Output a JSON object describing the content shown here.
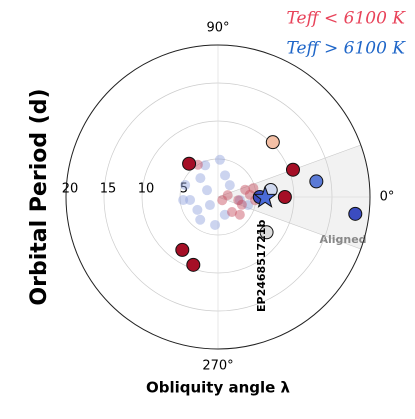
{
  "chart_data": {
    "type": "polar-scatter",
    "x_label": "Obliquity angle λ",
    "y_label": "Orbital Period (d)",
    "rlim": [
      0,
      20
    ],
    "rticks": [
      5,
      10,
      15,
      20
    ],
    "thetaticks": [
      {
        "value": 90,
        "label": "90°"
      },
      {
        "value": 0,
        "label": "0°"
      },
      {
        "value": 270,
        "label": "270°"
      }
    ],
    "grid": true,
    "legend": "upper right",
    "aligned_region": {
      "label": "Aligned",
      "theta": [
        -20,
        20
      ]
    },
    "series": [
      {
        "name": "Teff < 6100 K",
        "color": "#e8435a",
        "theta": [
          131,
          20,
          0,
          236,
          250,
          45
        ],
        "r": [
          5.8,
          10.5,
          8.8,
          8.4,
          9.5,
          10.2
        ],
        "colors": [
          "#a50f26",
          "#a50f26",
          "#a50f26",
          "#a50f26",
          "#a50f26",
          "#f3bfa5"
        ]
      },
      {
        "name": "Teff > 6100 K",
        "color": "#1f66c8",
        "theta": [
          9,
          353,
          7.5,
          324,
          0
        ],
        "r": [
          13.1,
          18.2,
          7.0,
          7.9,
          5.5
        ],
        "colors": [
          "#5b7ad6",
          "#3b4cc0",
          "#cfd8ef",
          "#dddddd",
          "#3b4cc0"
        ]
      }
    ],
    "background": [
      {
        "color": "#8e9fdc",
        "theta": [
          87,
          112,
          133,
          160,
          186,
          185,
          212,
          264,
          148,
          72,
          45,
          225,
          352,
          291,
          345,
          232
        ],
        "r": [
          4.9,
          4.5,
          3.4,
          4.6,
          3.7,
          4.6,
          3.2,
          3.7,
          1.7,
          3.0,
          2.2,
          1.5,
          2.9,
          2.5,
          4.1,
          3.8
        ]
      },
      {
        "color": "#c64a5a",
        "theta": [
          15,
          4,
          351,
          355,
          313,
          342,
          11,
          14,
          321,
          122,
          323
        ],
        "r": [
          3.7,
          4.2,
          2.7,
          4.9,
          2.7,
          3.3,
          1.3,
          4.8,
          3.7,
          5.0,
          0.7
        ]
      }
    ],
    "highlight": {
      "label": "EP246851721b",
      "theta": 359,
      "r": 6.2,
      "color": "#4a6bd8"
    }
  }
}
